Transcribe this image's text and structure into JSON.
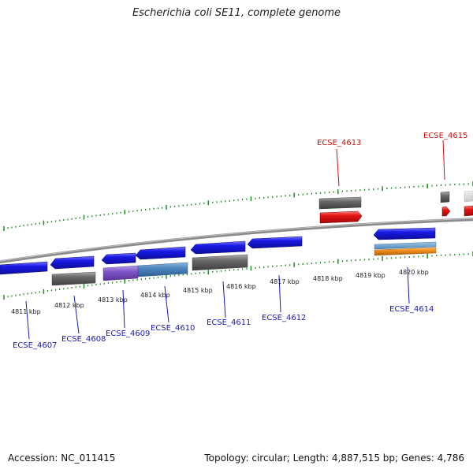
{
  "title": "Escherichia coli SE11, complete genome",
  "footer": {
    "accession": "Accession: NC_011415",
    "summary": "Topology: circular; Length: 4,887,515 bp; Genes: 4,786"
  },
  "colors": {
    "strand_minus": "#1a1ae6",
    "strand_plus": "#e61414",
    "label_minus": "#1a1ab0",
    "label_plus": "#cc1010",
    "backbone": "#8a8a8a",
    "tick": "#1f8a1f",
    "gray_feature": "#6b6b6b",
    "purple_feature": "#7f56c9",
    "steelblue_feature": "#4d86c0",
    "orange_feature": "#f08c1a"
  },
  "scale_labels": [
    "4811 kbp",
    "4812 kbp",
    "4813 kbp",
    "4814 kbp",
    "4815 kbp",
    "4816 kbp",
    "4817 kbp",
    "4818 kbp",
    "4819 kbp",
    "4820 kbp"
  ],
  "genes": [
    {
      "label": "ECSE_4607",
      "strand": "minus"
    },
    {
      "label": "ECSE_4608",
      "strand": "minus"
    },
    {
      "label": "ECSE_4609",
      "strand": "minus"
    },
    {
      "label": "ECSE_4610",
      "strand": "minus"
    },
    {
      "label": "ECSE_4611",
      "strand": "minus"
    },
    {
      "label": "ECSE_4612",
      "strand": "minus"
    },
    {
      "label": "ECSE_4613",
      "strand": "plus"
    },
    {
      "label": "ECSE_4614",
      "strand": "minus"
    },
    {
      "label": "ECSE_4615",
      "strand": "plus"
    }
  ]
}
